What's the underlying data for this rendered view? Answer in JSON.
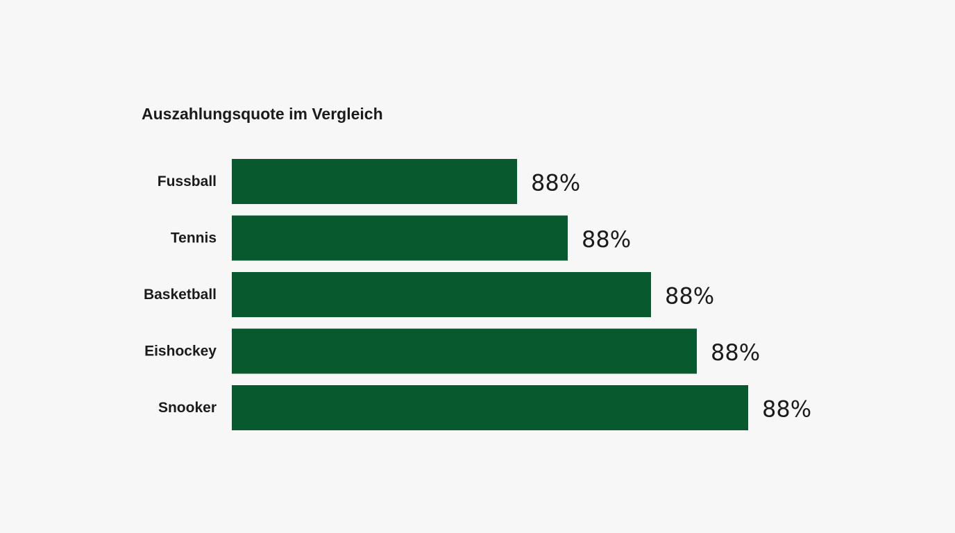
{
  "chart_data": {
    "type": "bar",
    "orientation": "horizontal",
    "title": "Auszahlungsquote im Vergleich",
    "categories": [
      "Fussball",
      "Tennis",
      "Basketball",
      "Eishockey",
      "Snooker"
    ],
    "series": [
      {
        "values": [
          88,
          88,
          88,
          88,
          88
        ],
        "value_labels": [
          "88%",
          "88%",
          "88%",
          "88%",
          "88%"
        ]
      }
    ],
    "bar_color": "#08592d",
    "grid": false,
    "legend": "none"
  }
}
